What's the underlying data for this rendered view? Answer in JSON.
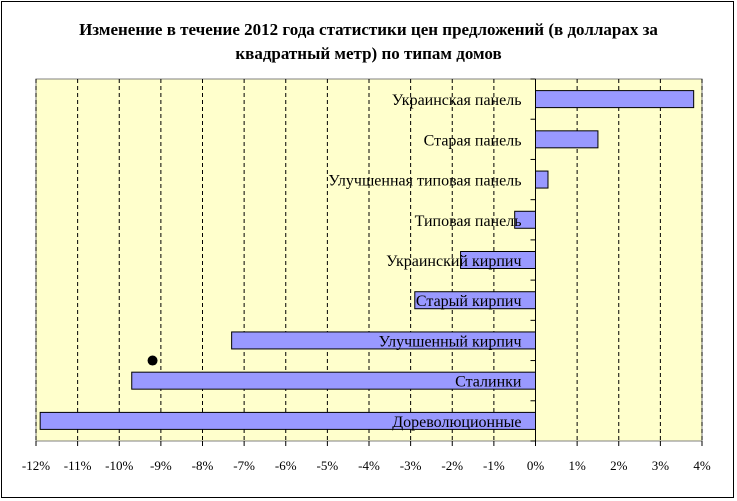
{
  "chart_data": {
    "type": "bar",
    "orientation": "horizontal",
    "title": "Изменение в течение 2012 года статистики цен предложений (в долларах за квадратный метр) по типам домов",
    "xlabel": "",
    "ylabel": "",
    "xlim": [
      -12,
      4
    ],
    "x_ticks": [
      "-12%",
      "-11%",
      "-10%",
      "-9%",
      "-8%",
      "-7%",
      "-6%",
      "-5%",
      "-4%",
      "-3%",
      "-2%",
      "-1%",
      "0%",
      "1%",
      "2%",
      "3%",
      "4%"
    ],
    "grid": "vertical dashed",
    "categories": [
      "Украинская панель",
      "Старая панель",
      "Улучшенная типовая панель",
      "Типовая панель",
      "Украинский кирпич",
      "Старый кирпич",
      "Улучшенный кирпич",
      "Сталинки",
      "Дореволюционные"
    ],
    "values": [
      3.8,
      1.5,
      0.3,
      -0.5,
      -1.8,
      -2.9,
      -7.3,
      -9.7,
      -11.9
    ],
    "unit": "%",
    "colors": {
      "bar_fill": "#9999ff",
      "bar_stroke": "#000000",
      "plot_background": "#ffffcc",
      "grid": "#000000",
      "marker": "#000000"
    },
    "annotations": [
      {
        "type": "dot",
        "x": -9.2,
        "y_between": [
          "Улучшенный кирпич",
          "Сталинки"
        ]
      }
    ]
  }
}
